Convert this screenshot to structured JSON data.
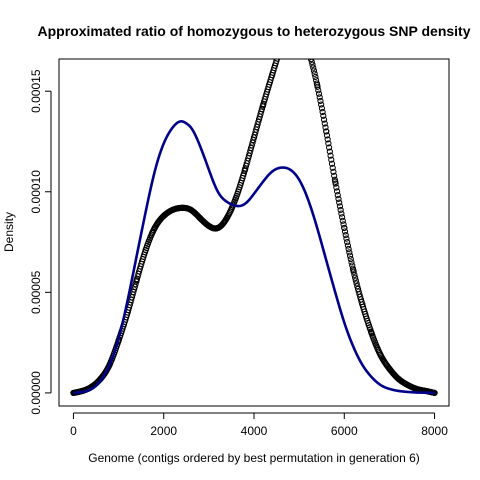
{
  "chart_data": {
    "type": "line",
    "title": "Approximated ratio of homozygous to heterozygous SNP density",
    "xlabel": "Genome (contigs ordered by best permutation in generation 6)",
    "ylabel": "Density",
    "xlim": [
      -320,
      8320
    ],
    "ylim": [
      -6.5e-06,
      0.000166
    ],
    "x_ticks": [
      0,
      2000,
      4000,
      6000,
      8000
    ],
    "x_tick_labels": [
      "0",
      "2000",
      "4000",
      "6000",
      "8000"
    ],
    "y_ticks": [
      0,
      5e-05,
      0.0001,
      0.00015
    ],
    "y_tick_labels": [
      "0.00000",
      "0.00005",
      "0.00010",
      "0.00015"
    ],
    "grid": false,
    "legend": "none",
    "series": [
      {
        "style": "line",
        "color": "#00008B",
        "x": [
          0,
          200,
          400,
          600,
          800,
          1000,
          1200,
          1400,
          1600,
          1800,
          2000,
          2200,
          2400,
          2500,
          2600,
          2800,
          3000,
          3200,
          3400,
          3600,
          3700,
          3800,
          4000,
          4200,
          4400,
          4600,
          4800,
          5000,
          5200,
          5400,
          5600,
          5800,
          6000,
          6200,
          6400,
          6600,
          6800,
          7000,
          7200,
          7400,
          7600,
          7800,
          8000
        ],
        "y": [
          0,
          5e-07,
          2e-06,
          6e-06,
          1.4e-05,
          2.7e-05,
          4.6e-05,
          6.8e-05,
          9e-05,
          0.00011,
          0.000124,
          0.000132,
          0.000135,
          0.000134,
          0.000132,
          0.000123,
          0.000111,
          0.0001,
          9.5e-05,
          9.3e-05,
          9.3e-05,
          9.4e-05,
          9.9e-05,
          0.000105,
          0.00011,
          0.000112,
          0.000111,
          0.000106,
          9.6e-05,
          8.2e-05,
          6.6e-05,
          5e-05,
          3.5e-05,
          2.3e-05,
          1.4e-05,
          8e-06,
          4e-06,
          2e-06,
          1e-06,
          5e-07,
          2e-07,
          1e-07,
          0
        ]
      },
      {
        "style": "points",
        "color": "#000000",
        "x": [
          0,
          200,
          400,
          600,
          800,
          1000,
          1200,
          1400,
          1600,
          1800,
          2000,
          2200,
          2400,
          2600,
          2800,
          3000,
          3200,
          3400,
          3600,
          3800,
          4000,
          4200,
          4400,
          4600,
          4800,
          5000,
          5200,
          5400,
          5600,
          5800,
          6000,
          6200,
          6400,
          6600,
          6800,
          7000,
          7200,
          7400,
          7600,
          7800,
          8000
        ],
        "y": [
          0,
          1e-06,
          3e-06,
          7e-06,
          1.4e-05,
          2.6e-05,
          4e-05,
          5.6e-05,
          7.1e-05,
          8.2e-05,
          8.8e-05,
          9.1e-05,
          9.2e-05,
          9.1e-05,
          8.7e-05,
          8.3e-05,
          8.2e-05,
          8.7e-05,
          9.7e-05,
          0.000111,
          0.000127,
          0.000143,
          0.000158,
          0.000172,
          0.000181,
          0.000181,
          0.000171,
          0.000153,
          0.00013,
          0.000105,
          8.2e-05,
          6.1e-05,
          4.4e-05,
          3e-05,
          1.9e-05,
          1.2e-05,
          7e-06,
          4e-06,
          2e-06,
          1e-06,
          0
        ]
      }
    ]
  }
}
